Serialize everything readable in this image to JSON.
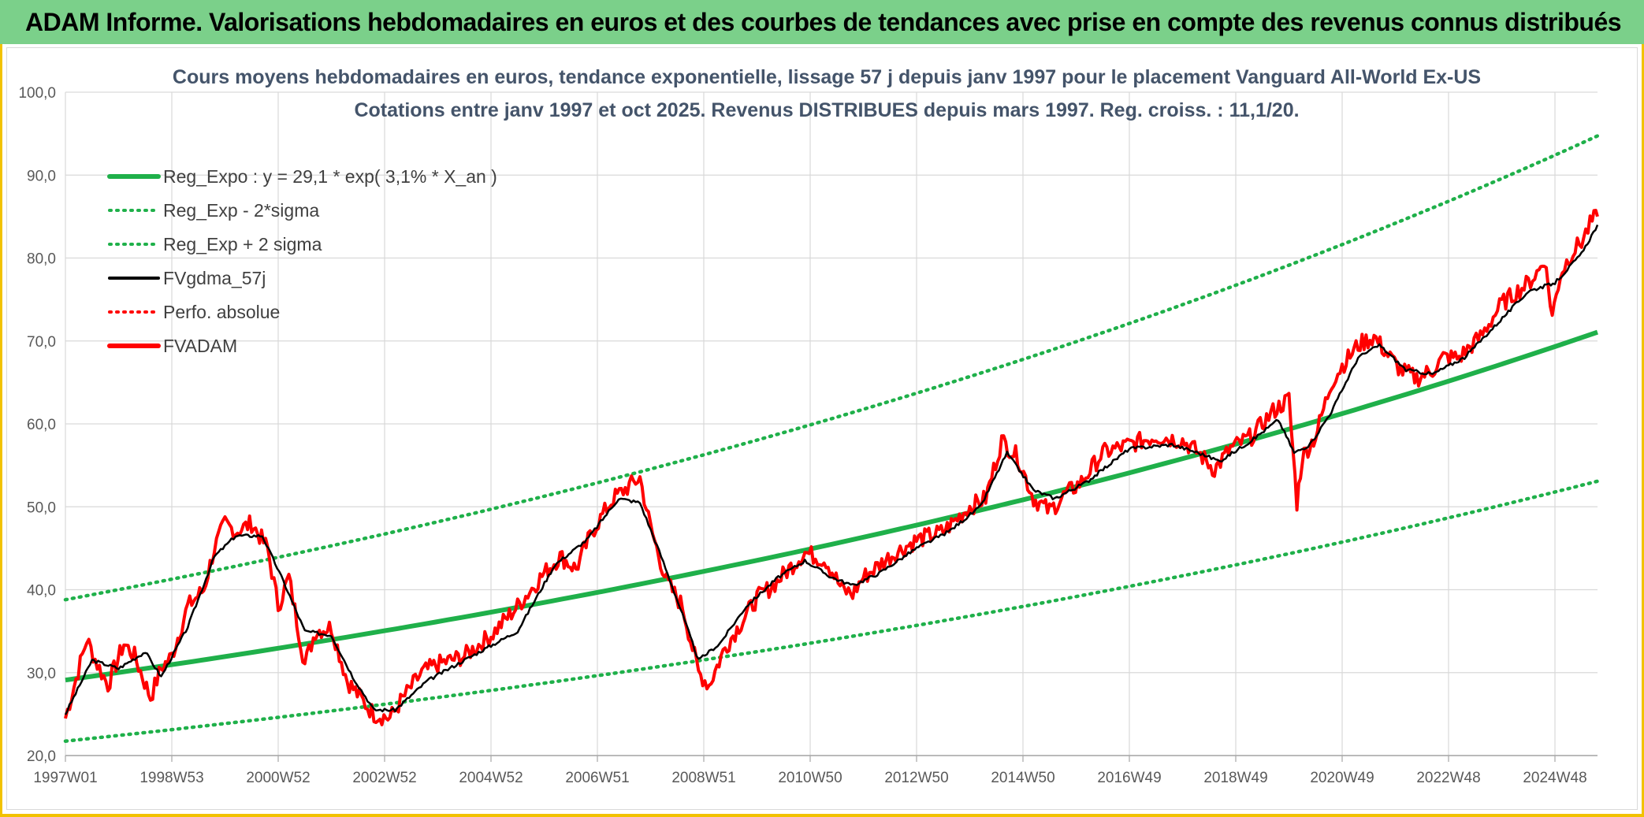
{
  "banner": {
    "title": "ADAM Informe. Valorisations hebdomadaires en euros et des courbes de tendances avec prise en compte des revenus connus distribués"
  },
  "colors": {
    "banner_bg": "#7bd08a",
    "frame": "#f2c200",
    "trend": "#1fb04a",
    "smooth": "#000000",
    "price": "#ff0000"
  },
  "chart_data": {
    "type": "line",
    "title": "Cours moyens hebdomadaires en euros, tendance exponentielle, lissage 57 j depuis janv 1997 pour le placement Vanguard All-World Ex-US",
    "subtitle": "Cotations entre janv 1997 et oct 2025. Revenus DISTRIBUES depuis mars 1997. Reg. croiss. : 11,1/20.",
    "xlabel": "",
    "ylabel": "",
    "ylim": [
      20,
      100
    ],
    "yticks": [
      "20,0",
      "30,0",
      "40,0",
      "50,0",
      "60,0",
      "70,0",
      "80,0",
      "90,0",
      "100,0"
    ],
    "xticks": [
      "1997W01",
      "1998W53",
      "2000W52",
      "2002W52",
      "2004W52",
      "2006W51",
      "2008W51",
      "2010W50",
      "2012W50",
      "2014W50",
      "2016W49",
      "2018W49",
      "2020W49",
      "2022W48",
      "2024W48"
    ],
    "xrange": [
      1997.0,
      2025.8
    ],
    "grid": true,
    "legend_position": "top-left",
    "legend": [
      {
        "label": "Reg_Expo : y = 29,1 * exp( 3,1% *  X_an )",
        "color": "#1fb04a",
        "style": "solid-thick"
      },
      {
        "label": "Reg_Exp - 2*sigma",
        "color": "#1fb04a",
        "style": "dotted"
      },
      {
        "label": "Reg_Exp + 2 sigma",
        "color": "#1fb04a",
        "style": "dotted"
      },
      {
        "label": "FVgdma_57j",
        "color": "#000000",
        "style": "solid"
      },
      {
        "label": "Perfo. absolue",
        "color": "#ff0000",
        "style": "dotted"
      },
      {
        "label": "FVADAM",
        "color": "#ff0000",
        "style": "solid-thick"
      }
    ],
    "trend": {
      "a": 29.1,
      "rate": 0.031,
      "lower_factor": 0.747,
      "upper_factor": 1.333
    },
    "series": [
      {
        "name": "FVADAM",
        "x": [
          1997.0,
          1997.4,
          1997.6,
          1997.8,
          1998.1,
          1998.3,
          1998.6,
          1998.8,
          1999.0,
          1999.3,
          1999.6,
          1999.8,
          2000.0,
          2000.2,
          2000.5,
          2000.8,
          2001.0,
          2001.2,
          2001.5,
          2001.7,
          2002.0,
          2002.3,
          2002.6,
          2002.8,
          2003.1,
          2003.3,
          2003.7,
          2004.0,
          2004.5,
          2005.0,
          2005.5,
          2006.0,
          2006.3,
          2006.6,
          2006.9,
          2007.1,
          2007.3,
          2007.6,
          2007.8,
          2008.0,
          2008.3,
          2008.6,
          2008.9,
          2009.1,
          2009.4,
          2009.7,
          2010.0,
          2010.3,
          2010.6,
          2010.9,
          2011.3,
          2011.6,
          2011.8,
          2012.0,
          2012.5,
          2013.0,
          2013.5,
          2014.0,
          2014.3,
          2014.6,
          2014.9,
          2015.2,
          2015.5,
          2015.8,
          2016.1,
          2016.5,
          2017.0,
          2017.5,
          2018.0,
          2018.3,
          2018.6,
          2018.9,
          2019.3,
          2019.7,
          2020.0,
          2020.15,
          2020.25,
          2020.5,
          2020.8,
          2021.0,
          2021.3,
          2021.6,
          2021.9,
          2022.1,
          2022.4,
          2022.7,
          2022.9,
          2023.2,
          2023.6,
          2024.0,
          2024.3,
          2024.5,
          2024.7,
          2024.8,
          2024.95,
          2025.1,
          2025.3,
          2025.5,
          2025.7,
          2025.8
        ],
        "y": [
          24.5,
          34.0,
          31.0,
          28.5,
          33.5,
          32.0,
          27.0,
          30.5,
          32.0,
          38.0,
          40.0,
          45.0,
          48.0,
          47.0,
          48.0,
          45.0,
          38.0,
          41.5,
          31.0,
          35.0,
          35.5,
          29.0,
          26.5,
          25.0,
          24.5,
          26.5,
          30.0,
          31.0,
          32.0,
          34.5,
          38.0,
          42.0,
          44.0,
          42.5,
          47.0,
          49.0,
          51.0,
          52.5,
          53.5,
          47.5,
          41.0,
          38.0,
          30.0,
          28.5,
          33.0,
          36.0,
          39.0,
          40.5,
          42.5,
          44.5,
          43.5,
          40.0,
          39.5,
          41.5,
          44.0,
          46.0,
          47.0,
          50.0,
          51.0,
          58.0,
          56.0,
          51.0,
          49.5,
          51.5,
          53.0,
          56.5,
          57.5,
          58.5,
          58.0,
          56.5,
          54.5,
          57.0,
          58.5,
          61.5,
          63.0,
          50.5,
          56.0,
          58.5,
          65.0,
          67.0,
          69.5,
          70.5,
          68.0,
          66.5,
          65.5,
          66.5,
          68.0,
          68.0,
          70.5,
          74.5,
          76.0,
          77.0,
          78.5,
          80.0,
          73.0,
          78.0,
          80.5,
          82.0,
          84.5,
          85.0
        ]
      },
      {
        "name": "FVgdma_57j",
        "x": [
          1997.0,
          1997.5,
          1998.0,
          1998.5,
          1998.8,
          1999.3,
          1999.8,
          2000.2,
          2000.7,
          2001.1,
          2001.5,
          2002.0,
          2002.4,
          2002.8,
          2003.2,
          2003.8,
          2004.5,
          2005.5,
          2006.2,
          2006.8,
          2007.4,
          2007.8,
          2008.2,
          2008.6,
          2008.9,
          2009.3,
          2009.8,
          2010.4,
          2010.9,
          2011.4,
          2011.8,
          2012.3,
          2013.0,
          2013.6,
          2014.2,
          2014.7,
          2015.2,
          2015.6,
          2016.2,
          2017.0,
          2017.8,
          2018.3,
          2018.7,
          2019.3,
          2019.8,
          2020.1,
          2020.4,
          2020.8,
          2021.3,
          2021.7,
          2022.2,
          2022.7,
          2023.3,
          2023.9,
          2024.5,
          2025.0,
          2025.5,
          2025.8
        ],
        "y": [
          25.0,
          31.5,
          30.5,
          32.5,
          29.5,
          35.5,
          44.0,
          46.5,
          46.5,
          41.0,
          35.0,
          34.5,
          29.5,
          25.5,
          25.5,
          29.0,
          31.5,
          35.0,
          43.0,
          46.0,
          51.0,
          50.5,
          44.0,
          37.0,
          31.5,
          33.5,
          38.0,
          41.5,
          43.5,
          41.5,
          40.5,
          42.0,
          45.0,
          47.0,
          50.0,
          56.5,
          52.0,
          51.0,
          53.0,
          57.0,
          57.5,
          56.5,
          55.5,
          58.0,
          60.5,
          56.5,
          57.5,
          61.5,
          68.0,
          69.5,
          66.5,
          66.0,
          68.0,
          72.0,
          76.0,
          77.0,
          80.5,
          84.0
        ]
      },
      {
        "name": "Reg_Expo : y = 29,1 * exp( 3,1% *  X_an )",
        "formula": "29.1*exp(0.031*(x-1997))",
        "start": 29.1,
        "end": 71.8
      },
      {
        "name": "Reg_Exp - 2*sigma",
        "start": 21.7,
        "end": 53.6
      },
      {
        "name": "Reg_Exp + 2 sigma",
        "start": 38.8,
        "end": 95.7
      }
    ]
  }
}
